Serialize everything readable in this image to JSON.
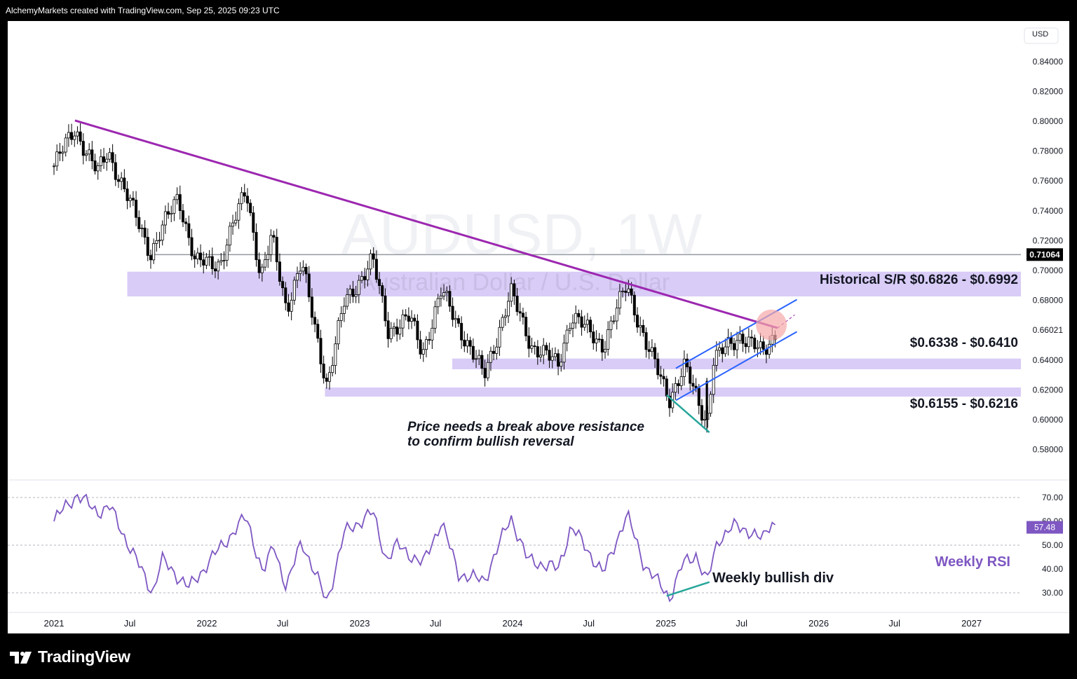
{
  "header": {
    "caption": "AlchemyMarkets created with TradingView.com, Sep 25, 2025 09:23 UTC"
  },
  "footer": {
    "brand": "TradingView"
  },
  "colors": {
    "trendline": "#9c27b0",
    "zone": "#d9ccf7",
    "channel": "#2962ff",
    "rsi": "#7e57c2",
    "divergence": "#26a69a",
    "highlight": "#f7a8a8",
    "price_tag": "#000000",
    "rsi_tag": "#7e57c2"
  },
  "chart_data": [
    {
      "type": "candlestick",
      "timeframe": "1W",
      "watermark_symbol": "AUDUSD, 1W",
      "watermark_name": "Australian Dollar / U.S. Dollar",
      "currency": "USD",
      "y_ticks": [
        "0.84000",
        "0.82000",
        "0.80000",
        "0.78000",
        "0.76000",
        "0.74000",
        "0.72000",
        "0.70000",
        "0.68000",
        "0.66021",
        "0.64000",
        "0.62000",
        "0.60000",
        "0.58000"
      ],
      "x_ticks": [
        "2021",
        "Jul",
        "2022",
        "Jul",
        "2023",
        "Jul",
        "2024",
        "Jul",
        "2025",
        "Jul",
        "2026",
        "Jul",
        "2027"
      ],
      "ylim": [
        0.573,
        0.87
      ],
      "price_points": [
        [
          "2021-01-01",
          0.77
        ],
        [
          "2021-02-20",
          0.795
        ],
        [
          "2021-04-15",
          0.765
        ],
        [
          "2021-05-10",
          0.78
        ],
        [
          "2021-08-20",
          0.712
        ],
        [
          "2021-10-25",
          0.75
        ],
        [
          "2021-12-05",
          0.705
        ],
        [
          "2022-02-01",
          0.705
        ],
        [
          "2022-04-05",
          0.755
        ],
        [
          "2022-05-10",
          0.695
        ],
        [
          "2022-06-05",
          0.722
        ],
        [
          "2022-07-10",
          0.675
        ],
        [
          "2022-08-15",
          0.705
        ],
        [
          "2022-10-15",
          0.623
        ],
        [
          "2022-11-25",
          0.678
        ],
        [
          "2023-02-01",
          0.707
        ],
        [
          "2023-03-10",
          0.66
        ],
        [
          "2023-05-01",
          0.668
        ],
        [
          "2023-05-31",
          0.645
        ],
        [
          "2023-07-15",
          0.686
        ],
        [
          "2023-10-25",
          0.629
        ],
        [
          "2023-12-28",
          0.685
        ],
        [
          "2024-02-15",
          0.65
        ],
        [
          "2024-04-19",
          0.637
        ],
        [
          "2024-05-20",
          0.67
        ],
        [
          "2024-08-05",
          0.65
        ],
        [
          "2024-09-30",
          0.691
        ],
        [
          "2024-11-15",
          0.65
        ],
        [
          "2025-01-10",
          0.615
        ],
        [
          "2025-02-15",
          0.635
        ],
        [
          "2025-04-09",
          0.598
        ],
        [
          "2025-04-25",
          0.64
        ],
        [
          "2025-06-30",
          0.657
        ],
        [
          "2025-08-20",
          0.644
        ],
        [
          "2025-09-25",
          0.661
        ]
      ],
      "last_price_label": "0.71064",
      "horizontal_line": 0.71064,
      "trendline": {
        "from": [
          "2021-02-20",
          0.8005
        ],
        "to": [
          "2025-09-25",
          0.6615
        ]
      },
      "zones": [
        {
          "from": "2021-06-25",
          "to": "2027-12-31",
          "low": 0.6826,
          "high": 0.6992,
          "label": "Historical S/R $0.6826 - $0.6992"
        },
        {
          "from": "2023-08-10",
          "to": "2027-12-31",
          "low": 0.6338,
          "high": 0.641,
          "label": "$0.6338 - $0.6410"
        },
        {
          "from": "2022-10-10",
          "to": "2027-12-31",
          "low": 0.6155,
          "high": 0.6216,
          "label": "$0.6155 - $0.6216"
        }
      ],
      "channel": {
        "upper": {
          "from": [
            "2025-01-25",
            0.6345
          ],
          "to": [
            "2025-11-10",
            0.6805
          ]
        },
        "lower": {
          "from": [
            "2025-01-25",
            0.613
          ],
          "to": [
            "2025-11-10",
            0.659
          ]
        }
      },
      "price_divergence": {
        "from": [
          "2025-01-03",
          0.6165
        ],
        "to": [
          "2025-04-15",
          0.5915
        ]
      },
      "annotation": [
        "Price needs a break above resistance",
        "to confirm bullish reversal"
      ]
    },
    {
      "type": "line",
      "title": "Weekly RSI",
      "y_ticks": [
        "70.00",
        "60.00",
        "50.00",
        "40.00",
        "30.00"
      ],
      "ylim": [
        25,
        75
      ],
      "last_value_label": "57.48",
      "rsi_points": [
        [
          "2021-01-01",
          60
        ],
        [
          "2021-02-01",
          67
        ],
        [
          "2021-02-25",
          71
        ],
        [
          "2021-04-15",
          64
        ],
        [
          "2021-05-15",
          66
        ],
        [
          "2021-06-20",
          53
        ],
        [
          "2021-08-25",
          30
        ],
        [
          "2021-09-15",
          44
        ],
        [
          "2021-11-20",
          32
        ],
        [
          "2022-01-10",
          44
        ],
        [
          "2022-04-05",
          62
        ],
        [
          "2022-05-15",
          38
        ],
        [
          "2022-06-10",
          50
        ],
        [
          "2022-07-10",
          32
        ],
        [
          "2022-08-15",
          52
        ],
        [
          "2022-10-15",
          26
        ],
        [
          "2022-11-25",
          55
        ],
        [
          "2023-02-01",
          64
        ],
        [
          "2023-03-05",
          44
        ],
        [
          "2023-04-01",
          50
        ],
        [
          "2023-06-01",
          42
        ],
        [
          "2023-07-15",
          60
        ],
        [
          "2023-08-25",
          38
        ],
        [
          "2023-10-25",
          35
        ],
        [
          "2023-12-28",
          62
        ],
        [
          "2024-02-05",
          44
        ],
        [
          "2024-04-19",
          40
        ],
        [
          "2024-05-20",
          58
        ],
        [
          "2024-08-05",
          38
        ],
        [
          "2024-09-30",
          63
        ],
        [
          "2024-11-10",
          42
        ],
        [
          "2025-01-10",
          28
        ],
        [
          "2025-02-10",
          42
        ],
        [
          "2025-03-15",
          46
        ],
        [
          "2025-04-09",
          34
        ],
        [
          "2025-05-05",
          52
        ],
        [
          "2025-06-10",
          58
        ],
        [
          "2025-07-20",
          56
        ],
        [
          "2025-08-20",
          52
        ],
        [
          "2025-09-10",
          60
        ],
        [
          "2025-09-25",
          57.48
        ]
      ],
      "rsi_divergence": {
        "from": [
          "2025-01-03",
          28.7
        ],
        "to": [
          "2025-04-15",
          34.5
        ]
      },
      "annotation": "Weekly bullish div"
    }
  ]
}
